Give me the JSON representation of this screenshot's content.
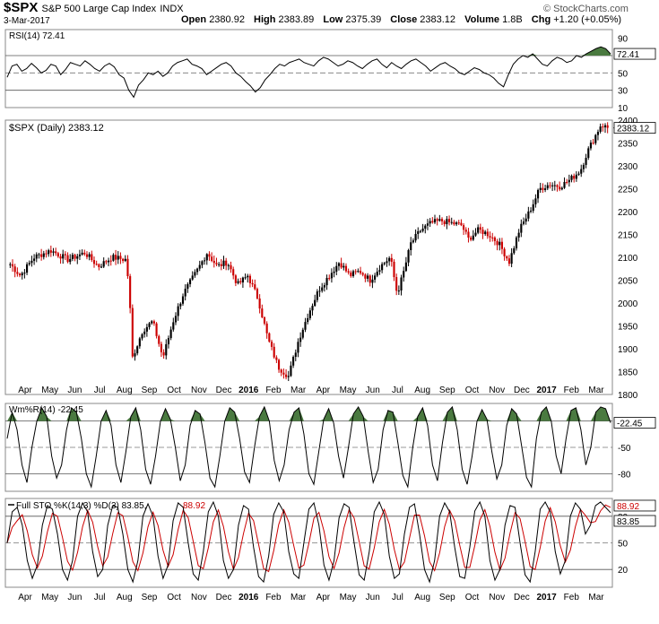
{
  "header": {
    "symbol": "$SPX",
    "name": "S&P 500 Large Cap Index",
    "exchange": "INDX",
    "date": "3-Mar-2017",
    "copyright": "© StockCharts.com",
    "open_label": "Open",
    "open_value": "2380.92",
    "high_label": "High",
    "high_value": "2383.89",
    "low_label": "Low",
    "low_value": "2375.39",
    "close_label": "Close",
    "close_value": "2383.12",
    "volume_label": "Volume",
    "volume_value": "1.8B",
    "chg_label": "Chg",
    "chg_value": "+1.20 (+0.05%)"
  },
  "colors": {
    "up": "#000000",
    "down": "#cc0000",
    "fill": "#4a7a40",
    "line": "#000000",
    "dline": "#cc0000"
  },
  "chart_data": [
    {
      "type": "line",
      "panel": "rsi",
      "title": "RSI(14) 72.41",
      "last_label": "72.41",
      "ylim": [
        10,
        100
      ],
      "yticks": [
        90,
        70,
        50,
        30,
        10
      ],
      "reference_lines": [
        70,
        50,
        30
      ],
      "values": [
        45,
        58,
        60,
        52,
        55,
        61,
        56,
        50,
        53,
        60,
        58,
        48,
        54,
        62,
        60,
        58,
        64,
        60,
        55,
        52,
        58,
        61,
        57,
        48,
        44,
        30,
        22,
        36,
        42,
        50,
        48,
        52,
        46,
        50,
        58,
        62,
        64,
        66,
        60,
        58,
        55,
        48,
        52,
        56,
        60,
        62,
        58,
        50,
        46,
        40,
        35,
        28,
        33,
        42,
        48,
        55,
        60,
        58,
        62,
        64,
        66,
        62,
        60,
        58,
        64,
        68,
        66,
        62,
        58,
        60,
        64,
        62,
        58,
        55,
        60,
        64,
        66,
        60,
        56,
        62,
        58,
        55,
        60,
        64,
        66,
        62,
        58,
        52,
        56,
        60,
        62,
        58,
        55,
        50,
        48,
        52,
        56,
        54,
        50,
        48,
        44,
        38,
        34,
        48,
        60,
        66,
        70,
        68,
        72,
        66,
        60,
        58,
        64,
        68,
        66,
        62,
        64,
        70,
        68,
        72,
        75,
        78,
        80,
        78,
        72
      ]
    },
    {
      "type": "candlestick",
      "panel": "price",
      "title": "$SPX (Daily) 2383.12",
      "last_label": "2383.12",
      "ylim": [
        1800,
        2400
      ],
      "yticks": [
        2400,
        2350,
        2300,
        2250,
        2200,
        2150,
        2100,
        2050,
        2000,
        1950,
        1900,
        1850,
        1800
      ],
      "x_labels": [
        "Apr",
        "May",
        "Jun",
        "Jul",
        "Aug",
        "Sep",
        "Oct",
        "Nov",
        "Dec",
        "2016",
        "Feb",
        "Mar",
        "Apr",
        "May",
        "Jun",
        "Jul",
        "Aug",
        "Sep",
        "Oct",
        "Nov",
        "Dec",
        "2017",
        "Feb",
        "Mar"
      ],
      "anchors": [
        [
          0,
          2085
        ],
        [
          3,
          2060
        ],
        [
          7,
          2100
        ],
        [
          12,
          2115
        ],
        [
          17,
          2095
        ],
        [
          22,
          2110
        ],
        [
          26,
          2080
        ],
        [
          30,
          2100
        ],
        [
          34,
          2095
        ],
        [
          35,
          2040
        ],
        [
          36,
          1880
        ],
        [
          39,
          1940
        ],
        [
          42,
          1960
        ],
        [
          45,
          1880
        ],
        [
          48,
          1960
        ],
        [
          51,
          2020
        ],
        [
          55,
          2070
        ],
        [
          58,
          2110
        ],
        [
          61,
          2080
        ],
        [
          64,
          2090
        ],
        [
          67,
          2040
        ],
        [
          70,
          2060
        ],
        [
          73,
          2010
        ],
        [
          76,
          1920
        ],
        [
          79,
          1860
        ],
        [
          82,
          1840
        ],
        [
          85,
          1920
        ],
        [
          88,
          1980
        ],
        [
          91,
          2030
        ],
        [
          94,
          2060
        ],
        [
          97,
          2090
        ],
        [
          100,
          2060
        ],
        [
          103,
          2070
        ],
        [
          106,
          2050
        ],
        [
          109,
          2080
        ],
        [
          112,
          2100
        ],
        [
          114,
          2020
        ],
        [
          116,
          2070
        ],
        [
          118,
          2130
        ],
        [
          121,
          2160
        ],
        [
          124,
          2175
        ],
        [
          127,
          2180
        ],
        [
          130,
          2175
        ],
        [
          133,
          2170
        ],
        [
          135,
          2140
        ],
        [
          138,
          2160
        ],
        [
          141,
          2150
        ],
        [
          144,
          2130
        ],
        [
          147,
          2090
        ],
        [
          150,
          2160
        ],
        [
          153,
          2200
        ],
        [
          156,
          2250
        ],
        [
          159,
          2260
        ],
        [
          162,
          2255
        ],
        [
          165,
          2270
        ],
        [
          168,
          2290
        ],
        [
          170,
          2330
        ],
        [
          172,
          2360
        ],
        [
          174,
          2390
        ],
        [
          176,
          2383
        ]
      ],
      "close": 2383.12
    },
    {
      "type": "line",
      "panel": "williams",
      "title": "Wm%R(14) -22.45",
      "last_label": "-22.45",
      "ylim": [
        -100,
        0
      ],
      "yticks": [
        -20,
        -50,
        -80
      ],
      "reference_lines": [
        -20,
        -50,
        -80
      ],
      "values": [
        -40,
        -10,
        -30,
        -70,
        -90,
        -50,
        -20,
        -5,
        -15,
        -60,
        -85,
        -70,
        -30,
        -5,
        -10,
        -40,
        -80,
        -95,
        -60,
        -20,
        -8,
        -25,
        -70,
        -90,
        -55,
        -15,
        -5,
        -30,
        -75,
        -92,
        -60,
        -20,
        -6,
        -18,
        -50,
        -88,
        -70,
        -25,
        -8,
        -12,
        -45,
        -85,
        -95,
        -60,
        -20,
        -5,
        -10,
        -40,
        -78,
        -90,
        -50,
        -15,
        -4,
        -20,
        -65,
        -88,
        -70,
        -30,
        -10,
        -5,
        -35,
        -80,
        -92,
        -55,
        -18,
        -6,
        -22,
        -60,
        -85,
        -50,
        -12,
        -4,
        -15,
        -55,
        -90,
        -75,
        -30,
        -8,
        -10,
        -45,
        -82,
        -95,
        -50,
        -15,
        -5,
        -25,
        -70,
        -88,
        -45,
        -10,
        -4,
        -30,
        -75,
        -92,
        -60,
        -20,
        -7,
        -18,
        -55,
        -86,
        -70,
        -25,
        -6,
        -12,
        -48,
        -84,
        -95,
        -40,
        -10,
        -4,
        -20,
        -60,
        -80,
        -40,
        -8,
        -5,
        -30,
        -70,
        -50,
        -10,
        -4,
        -6,
        -22
      ]
    },
    {
      "type": "line",
      "panel": "stochastic",
      "title": "Full STO %K(14,3) %D(3)",
      "k_label": "83.85",
      "d_label": "88.92",
      "ylim": [
        0,
        100
      ],
      "yticks": [
        80,
        50,
        20
      ],
      "reference_lines": [
        80,
        50,
        20
      ],
      "k_values": [
        50,
        85,
        90,
        70,
        30,
        10,
        25,
        70,
        92,
        88,
        60,
        20,
        8,
        30,
        80,
        95,
        85,
        40,
        12,
        20,
        70,
        92,
        90,
        60,
        20,
        6,
        30,
        80,
        94,
        80,
        35,
        10,
        25,
        75,
        95,
        90,
        50,
        15,
        8,
        40,
        85,
        96,
        80,
        30,
        10,
        20,
        70,
        92,
        88,
        45,
        12,
        6,
        35,
        82,
        95,
        85,
        40,
        15,
        10,
        50,
        88,
        95,
        70,
        25,
        8,
        30,
        78,
        94,
        90,
        50,
        14,
        8,
        40,
        85,
        96,
        82,
        35,
        10,
        15,
        60,
        90,
        94,
        60,
        20,
        6,
        30,
        80,
        95,
        85,
        45,
        12,
        10,
        45,
        86,
        96,
        80,
        30,
        8,
        20,
        70,
        92,
        90,
        50,
        14,
        6,
        40,
        88,
        96,
        85,
        40,
        15,
        30,
        80,
        95,
        88,
        60,
        70,
        92,
        96,
        90,
        84
      ]
    }
  ]
}
